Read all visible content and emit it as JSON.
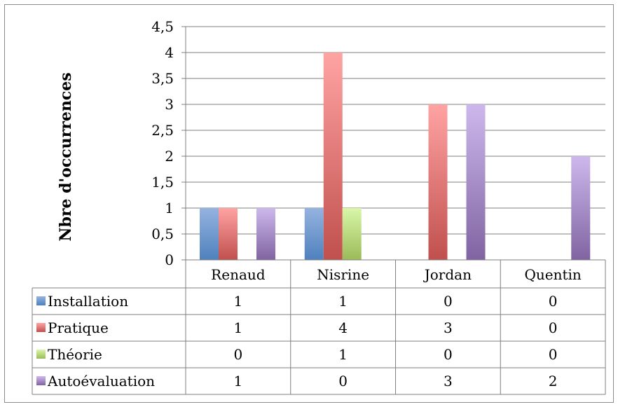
{
  "chart_data": {
    "type": "bar",
    "ylabel": "Nbre d'occurrences",
    "xlabel": "",
    "ylim": [
      0,
      4.5
    ],
    "ytick_step": 0.5,
    "ytick_labels": [
      "0",
      "0,5",
      "1",
      "1,5",
      "2",
      "2,5",
      "3",
      "3,5",
      "4",
      "4,5"
    ],
    "categories": [
      "Renaud",
      "Nisrine",
      "Jordan",
      "Quentin"
    ],
    "series": [
      {
        "name": "Installation",
        "values": [
          1,
          1,
          0,
          0
        ],
        "color": "#4f81bd",
        "light": "#95b3e0"
      },
      {
        "name": "Pratique",
        "values": [
          1,
          4,
          3,
          0
        ],
        "color": "#c0504d",
        "light": "#ffa3a3"
      },
      {
        "name": "Théorie",
        "values": [
          0,
          1,
          0,
          0
        ],
        "color": "#9bbb59",
        "light": "#d9f7a8"
      },
      {
        "name": "Autoévaluation",
        "values": [
          1,
          0,
          3,
          2
        ],
        "color": "#8064a2",
        "light": "#cdb8ec"
      }
    ],
    "grid": true,
    "legend": "data-table"
  }
}
